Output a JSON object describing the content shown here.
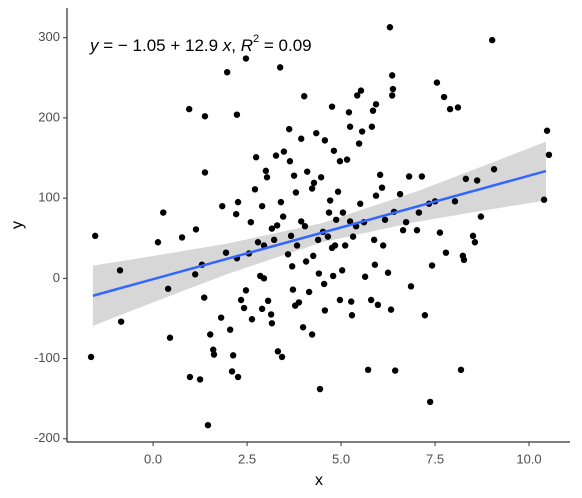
{
  "chart_data": {
    "type": "scatter",
    "x_label": "x",
    "y_label": "y",
    "annotation": [
      "y",
      " = − 1.05 + 12.9 ",
      "x",
      ", ",
      "R",
      "2",
      " = 0.09"
    ],
    "xlim": [
      -2.29,
      11.09
    ],
    "ylim": [
      -204,
      337
    ],
    "xticks": [
      {
        "value": 0,
        "label": "0.0"
      },
      2.5,
      {
        "value": 5,
        "label": "5.0"
      },
      7.5,
      {
        "value": 10,
        "label": "10.0"
      }
    ],
    "yticks": [
      -200,
      -100,
      0,
      100,
      200,
      300
    ],
    "point_color": "#000000",
    "fit_color": "#3366ff",
    "band_color": "#bdbdbd",
    "points": {
      "x": [
        -1.65,
        -1.54,
        -0.88,
        -0.85,
        0.13,
        0.27,
        0.4,
        0.45,
        0.77,
        0.96,
        0.98,
        1.25,
        1.14,
        1.12,
        1.38,
        1.38,
        1.3,
        1.36,
        1.46,
        1.52,
        1.6,
        1.62,
        1.81,
        1.84,
        1.94,
        1.97,
        2.05,
        2.1,
        2.13,
        2.21,
        2.23,
        2.23,
        2.26,
        2.26,
        2.34,
        2.42,
        2.47,
        2.47,
        2.55,
        2.6,
        2.63,
        2.71,
        2.74,
        2.79,
        2.85,
        2.9,
        2.9,
        2.95,
        2.95,
        3.0,
        3.03,
        3.06,
        3.14,
        3.16,
        3.16,
        3.22,
        3.27,
        3.3,
        3.32,
        3.38,
        3.4,
        3.43,
        3.46,
        3.48,
        3.59,
        3.62,
        3.64,
        3.67,
        3.7,
        3.72,
        3.75,
        3.78,
        3.8,
        3.83,
        3.88,
        3.94,
        3.94,
        3.99,
        4.02,
        4.04,
        4.07,
        4.1,
        4.15,
        4.23,
        4.23,
        4.26,
        4.28,
        4.34,
        4.39,
        4.41,
        4.44,
        4.47,
        4.52,
        4.55,
        4.57,
        4.57,
        4.65,
        4.68,
        4.71,
        4.76,
        4.76,
        4.79,
        4.81,
        4.84,
        4.87,
        4.92,
        4.97,
        4.97,
        5.03,
        5.05,
        5.11,
        5.16,
        5.21,
        5.24,
        5.24,
        5.27,
        5.29,
        5.32,
        5.4,
        5.43,
        5.48,
        5.51,
        5.53,
        5.56,
        5.61,
        5.64,
        5.72,
        5.8,
        5.82,
        5.85,
        5.88,
        5.9,
        5.93,
        5.93,
        5.98,
        6.04,
        6.09,
        6.12,
        6.17,
        6.25,
        6.3,
        6.33,
        6.36,
        6.36,
        6.38,
        6.41,
        6.44,
        6.57,
        6.65,
        6.73,
        6.81,
        6.86,
        7.02,
        7.07,
        7.15,
        7.23,
        7.34,
        7.37,
        7.42,
        7.5,
        7.55,
        7.63,
        7.74,
        7.79,
        7.9,
        8.03,
        8.11,
        8.19,
        8.24,
        8.27,
        8.32,
        8.51,
        8.56,
        8.62,
        8.72,
        9.02,
        9.07,
        10.4,
        10.48,
        10.53
      ],
      "y": [
        -98,
        53,
        10,
        -54,
        45,
        82,
        -13,
        -74,
        51,
        211,
        -123,
        -126,
        61,
        5,
        202,
        132,
        17,
        -24,
        -183,
        -70,
        -89,
        -95,
        -49,
        90,
        32,
        257,
        -64,
        -116,
        -96,
        80,
        204,
        25,
        -123,
        95,
        -27,
        -37,
        274,
        -15,
        31,
        70,
        -51,
        111,
        151,
        45,
        3,
        -38,
        90,
        41,
        0,
        134,
        126,
        -28,
        -45,
        62,
        -56,
        48,
        153,
        66,
        -91,
        263,
        95,
        -98,
        77,
        158,
        30,
        186,
        146,
        53,
        15,
        -14,
        128,
        -34,
        107,
        41,
        -30,
        71,
        174,
        -61,
        227,
        65,
        21,
        133,
        -17,
        -70,
        112,
        28,
        119,
        181,
        48,
        6,
        -138,
        126,
        58,
        -7,
        172,
        -40,
        52,
        82,
        97,
        38,
        214,
        3,
        159,
        41,
        73,
        108,
        -27,
        146,
        10,
        82,
        41,
        148,
        207,
        189,
        71,
        -29,
        -46,
        52,
        65,
        228,
        168,
        93,
        234,
        183,
        70,
        2,
        -114,
        -27,
        189,
        209,
        48,
        17,
        217,
        103,
        -33,
        129,
        113,
        41,
        73,
        7,
        313,
        -39,
        228,
        253,
        236,
        83,
        -115,
        105,
        60,
        70,
        127,
        -10,
        60,
        82,
        127,
        -46,
        93,
        -154,
        16,
        96,
        244,
        57,
        226,
        32,
        211,
        96,
        213,
        -114,
        28,
        23,
        124,
        53,
        45,
        122,
        77,
        297,
        136,
        98,
        184,
        154
      ]
    },
    "fit": {
      "x": [
        -1.6,
        10.45
      ],
      "y": [
        -21.69,
        133.76
      ]
    },
    "band": {
      "x": [
        -1.6,
        0,
        2,
        4.5,
        7,
        9,
        10.45
      ],
      "lower": [
        -59.2,
        -29.9,
        5.9,
        45.0,
        70.4,
        86.2,
        97.1
      ],
      "upper": [
        15.8,
        27.8,
        43.6,
        69.0,
        108.1,
        143.9,
        170.5
      ]
    }
  }
}
